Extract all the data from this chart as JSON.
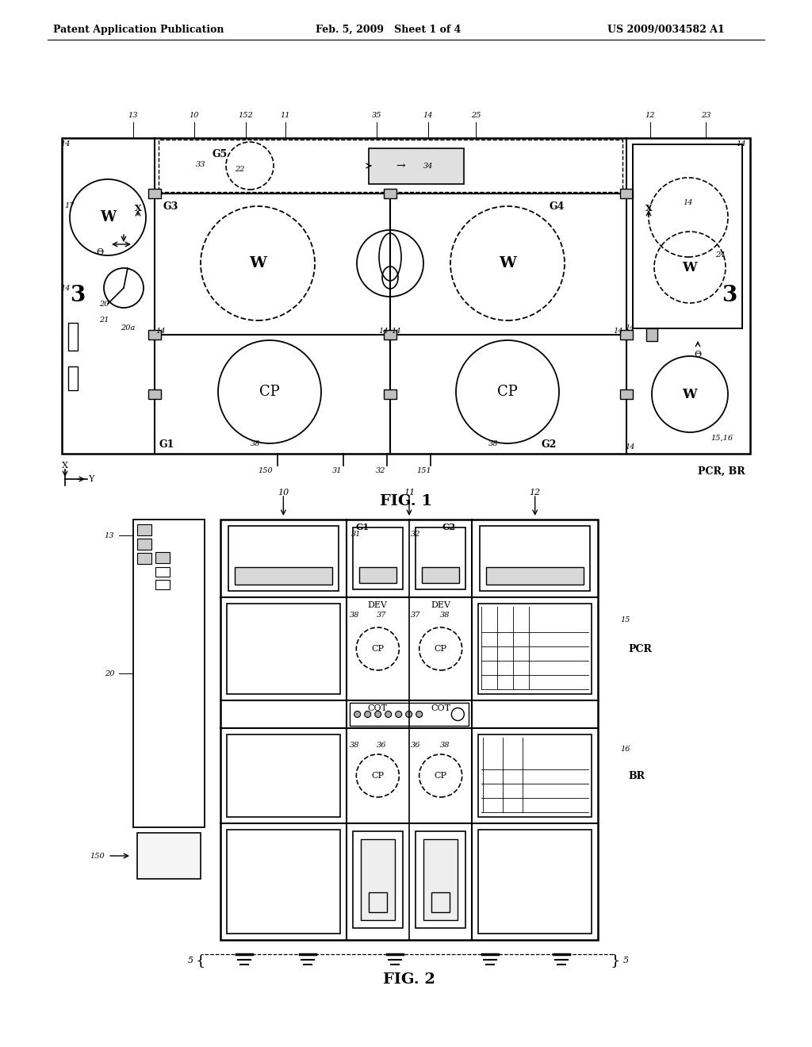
{
  "bg_color": "#ffffff",
  "line_color": "#000000",
  "header_left": "Patent Application Publication",
  "header_mid": "Feb. 5, 2009   Sheet 1 of 4",
  "header_right": "US 2009/0034582 A1",
  "fig1_label": "FIG. 1",
  "fig2_label": "FIG. 2"
}
